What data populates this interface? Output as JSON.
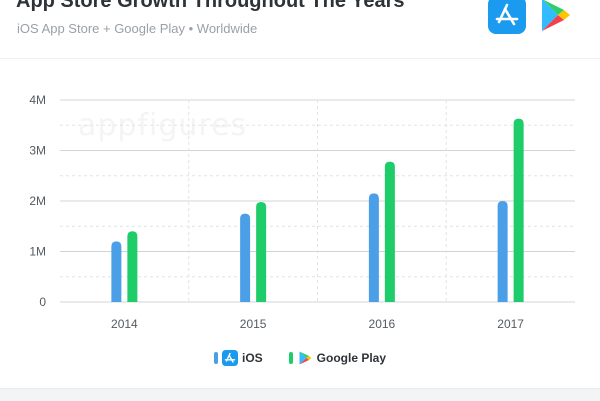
{
  "header": {
    "title": "App Store Growth Throughout The Years",
    "subtitle": "iOS App Store + Google Play • Worldwide",
    "icons": [
      "app-store-icon",
      "google-play-icon"
    ]
  },
  "watermark": "appfigures",
  "colors": {
    "ios": "#4a9fe6",
    "google_play": "#1fcc6a",
    "grid": "#d0d4d9",
    "axis_text": "#555b61"
  },
  "legend": {
    "ios_label": "iOS",
    "google_play_label": "Google Play"
  },
  "chart_data": {
    "type": "bar",
    "title": "App Store Growth Throughout The Years",
    "subtitle": "iOS App Store + Google Play • Worldwide",
    "categories": [
      "2014",
      "2015",
      "2016",
      "2017"
    ],
    "series": [
      {
        "name": "iOS",
        "values": [
          1.2,
          1.75,
          2.15,
          2.0
        ]
      },
      {
        "name": "Google Play",
        "values": [
          1.4,
          1.98,
          2.78,
          3.63
        ]
      }
    ],
    "y_ticks": [
      0,
      1,
      2,
      3,
      4
    ],
    "y_tick_labels": [
      "0",
      "1M",
      "2M",
      "3M",
      "4M"
    ],
    "ylim": [
      0,
      4
    ],
    "xlabel": "",
    "ylabel": "",
    "grid": true,
    "legend_position": "bottom"
  }
}
